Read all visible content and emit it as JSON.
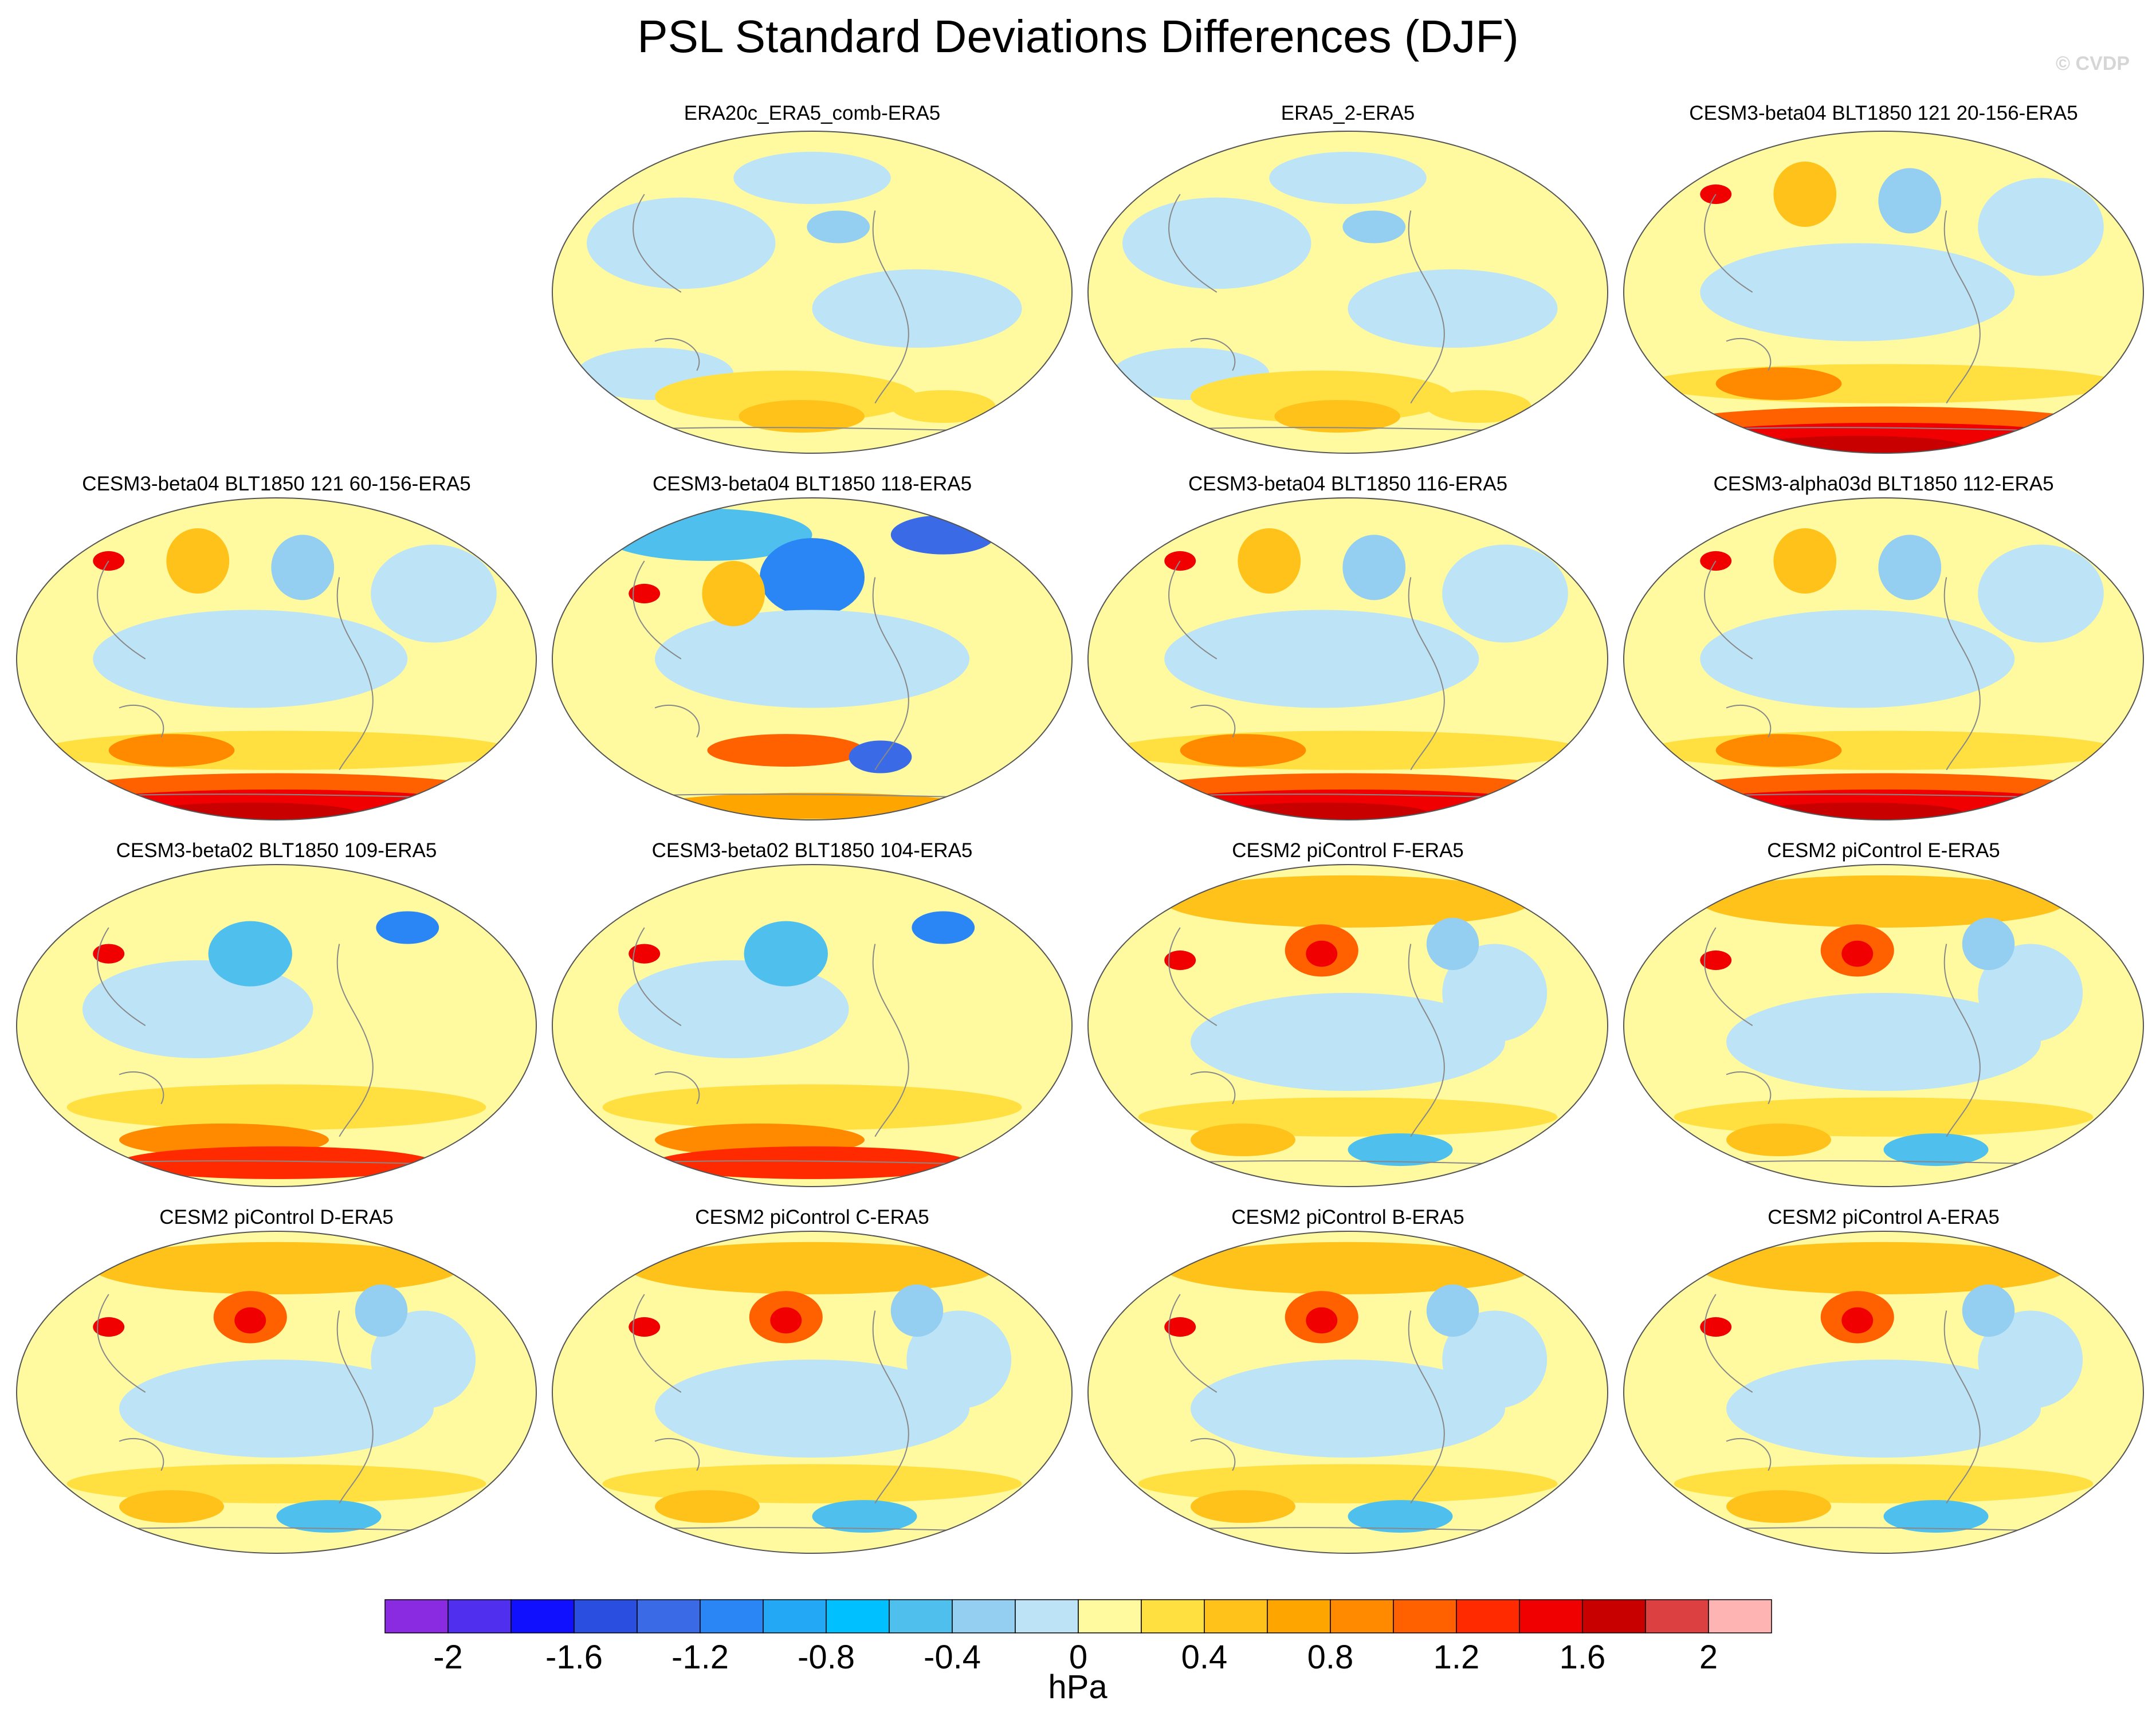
{
  "title": "PSL Standard Deviations Differences (DJF)",
  "copyright": "© CVDP",
  "panels": [
    {
      "title": "ERA20c_ERA5_comb-ERA5",
      "pattern": "mild-blue"
    },
    {
      "title": "ERA5_2-ERA5",
      "pattern": "mild-blue"
    },
    {
      "title": "CESM3-beta04 BLT1850 121 20-156-ERA5",
      "pattern": "strong-south-red"
    },
    {
      "title": "CESM3-beta04 BLT1850 121 60-156-ERA5",
      "pattern": "strong-south-red"
    },
    {
      "title": "CESM3-beta04 BLT1850 118-ERA5",
      "pattern": "north-blue"
    },
    {
      "title": "CESM3-beta04 BLT1850 116-ERA5",
      "pattern": "strong-south-red"
    },
    {
      "title": "CESM3-alpha03d BLT1850 112-ERA5",
      "pattern": "strong-south-red"
    },
    {
      "title": "CESM3-beta02 BLT1850 109-ERA5",
      "pattern": "south-red"
    },
    {
      "title": "CESM3-beta02 BLT1850 104-ERA5",
      "pattern": "south-red"
    },
    {
      "title": "CESM2 piControl F-ERA5",
      "pattern": "north-red"
    },
    {
      "title": "CESM2 piControl E-ERA5",
      "pattern": "north-red"
    },
    {
      "title": "CESM2 piControl D-ERA5",
      "pattern": "north-red"
    },
    {
      "title": "CESM2 piControl C-ERA5",
      "pattern": "north-red"
    },
    {
      "title": "CESM2 piControl B-ERA5",
      "pattern": "north-red"
    },
    {
      "title": "CESM2 piControl A-ERA5",
      "pattern": "north-red"
    }
  ],
  "colorbar": {
    "units": "hPa",
    "colors": [
      "#8a2be2",
      "#5030ee",
      "#1010ff",
      "#2a4ee0",
      "#3a6ae6",
      "#2a86f5",
      "#22a8f5",
      "#00c0ff",
      "#4fc0ee",
      "#94cef0",
      "#bde3f6",
      "#fffaa0",
      "#ffe040",
      "#ffc21a",
      "#ffa500",
      "#ff8a00",
      "#ff6000",
      "#ff2a00",
      "#f00000",
      "#c80000",
      "#dd4040",
      "#ffb4b4"
    ],
    "tick_labels": [
      "-2",
      "-1.6",
      "-1.2",
      "-0.8",
      "-0.4",
      "0",
      "0.4",
      "0.8",
      "1.2",
      "1.6",
      "2"
    ]
  }
}
